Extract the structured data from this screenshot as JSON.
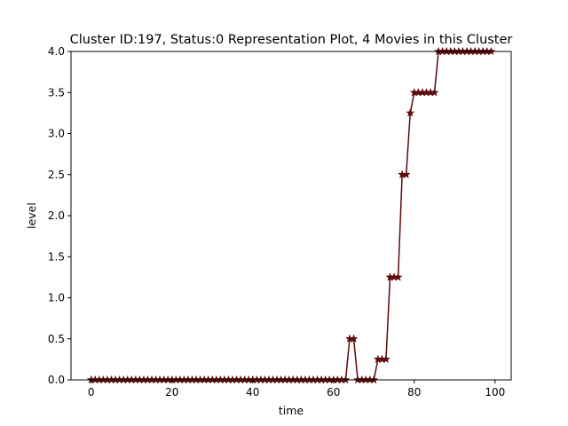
{
  "chart_data": {
    "type": "line",
    "title": "Cluster ID:197, Status:0 Representation Plot, 4 Movies in this Cluster",
    "xlabel": "time",
    "ylabel": "level",
    "xlim": [
      -5,
      104
    ],
    "ylim": [
      0,
      4.0
    ],
    "xticks": [
      0,
      20,
      40,
      60,
      80,
      100
    ],
    "yticks": [
      0.0,
      0.5,
      1.0,
      1.5,
      2.0,
      2.5,
      3.0,
      3.5,
      4.0
    ],
    "grid": false,
    "series_color": "#5c0a0a",
    "marker": "star",
    "series": [
      {
        "x": [
          0,
          1,
          2,
          3,
          4,
          5,
          6,
          7,
          8,
          9,
          10,
          11,
          12,
          13,
          14,
          15,
          16,
          17,
          18,
          19,
          20,
          21,
          22,
          23,
          24,
          25,
          26,
          27,
          28,
          29,
          30,
          31,
          32,
          33,
          34,
          35,
          36,
          37,
          38,
          39,
          40,
          41,
          42,
          43,
          44,
          45,
          46,
          47,
          48,
          49,
          50,
          51,
          52,
          53,
          54,
          55,
          56,
          57,
          58,
          59,
          60,
          61,
          62,
          63,
          64,
          65,
          66,
          67,
          68,
          69,
          70,
          71,
          72,
          73,
          74,
          75,
          76,
          77,
          78,
          79,
          80,
          81,
          82,
          83,
          84,
          85,
          86,
          87,
          88,
          89,
          90,
          91,
          92,
          93,
          94,
          95,
          96,
          97,
          98,
          99
        ],
        "values": [
          0,
          0,
          0,
          0,
          0,
          0,
          0,
          0,
          0,
          0,
          0,
          0,
          0,
          0,
          0,
          0,
          0,
          0,
          0,
          0,
          0,
          0,
          0,
          0,
          0,
          0,
          0,
          0,
          0,
          0,
          0,
          0,
          0,
          0,
          0,
          0,
          0,
          0,
          0,
          0,
          0,
          0,
          0,
          0,
          0,
          0,
          0,
          0,
          0,
          0,
          0,
          0,
          0,
          0,
          0,
          0,
          0,
          0,
          0,
          0,
          0,
          0,
          0,
          0,
          0.5,
          0.5,
          0,
          0,
          0,
          0,
          0,
          0.25,
          0.25,
          0.25,
          1.25,
          1.25,
          1.25,
          2.5,
          2.5,
          3.25,
          3.5,
          3.5,
          3.5,
          3.5,
          3.5,
          3.5,
          4,
          4,
          4,
          4,
          4,
          4,
          4,
          4,
          4,
          4,
          4,
          4,
          4,
          4
        ]
      }
    ]
  }
}
